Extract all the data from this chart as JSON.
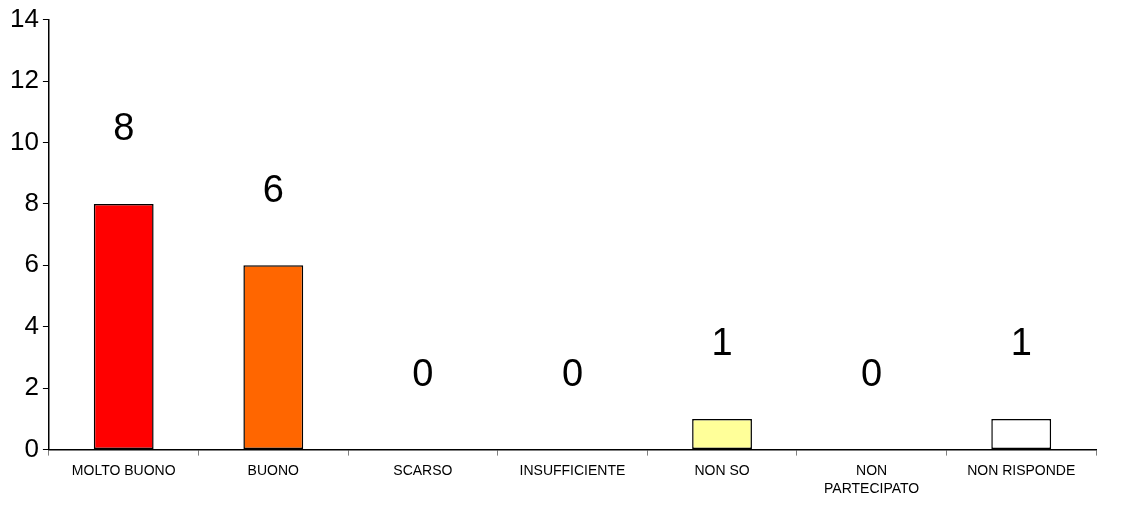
{
  "chart_data": {
    "type": "bar",
    "categories": [
      "MOLTO BUONO",
      "BUONO",
      "SCARSO",
      "INSUFFICIENTE",
      "NON SO",
      "NON PARTECIPATO",
      "NON RISPONDE"
    ],
    "values": [
      8,
      6,
      0,
      0,
      1,
      0,
      1
    ],
    "colors": [
      "#ff0000",
      "#ff6600",
      "#cc7700",
      "#cc9966",
      "#ffff99",
      "#969696",
      "#ffffff"
    ],
    "ylim": [
      0,
      14
    ],
    "yticks": [
      0,
      2,
      4,
      6,
      8,
      10,
      12,
      14
    ],
    "data_labels": true
  }
}
